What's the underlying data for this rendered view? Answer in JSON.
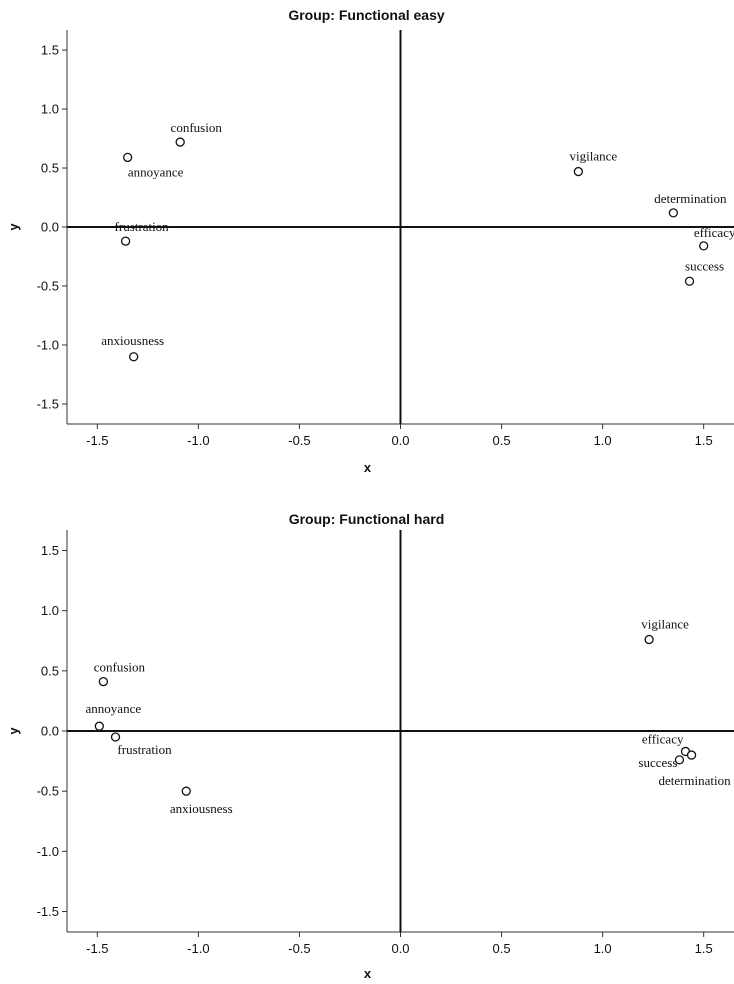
{
  "chart_data": [
    {
      "type": "scatter",
      "title": "Group: Functional easy",
      "xlabel": "x",
      "ylabel": "y",
      "xlim": [
        -1.65,
        1.65
      ],
      "ylim": [
        -1.67,
        1.67
      ],
      "xticks": [
        -1.5,
        -1.0,
        -0.5,
        0.0,
        0.5,
        1.0,
        1.5
      ],
      "yticks": [
        1.5,
        1.0,
        0.5,
        0.0,
        -0.5,
        -1.0,
        -1.5
      ],
      "xtick_labels": [
        "-1.5",
        "-1.0",
        "-0.5",
        "0.0",
        "0.5",
        "1.0",
        "1.5"
      ],
      "ytick_labels": [
        "1.5",
        "1.0",
        "0.5",
        "0.0",
        "-0.5",
        "-1.0",
        "-1.5"
      ],
      "reference_lines": {
        "x": 0,
        "y": 0
      },
      "grid": false,
      "points": [
        {
          "label": "confusion",
          "x": -1.09,
          "y": 0.72
        },
        {
          "label": "annoyance",
          "x": -1.35,
          "y": 0.59
        },
        {
          "label": "frustration",
          "x": -1.36,
          "y": -0.12
        },
        {
          "label": "anxiousness",
          "x": -1.32,
          "y": -1.1
        },
        {
          "label": "vigilance",
          "x": 0.88,
          "y": 0.47
        },
        {
          "label": "determination",
          "x": 1.35,
          "y": 0.12
        },
        {
          "label": "efficacy",
          "x": 1.5,
          "y": -0.16
        },
        {
          "label": "success",
          "x": 1.43,
          "y": -0.46
        }
      ]
    },
    {
      "type": "scatter",
      "title": "Group: Functional hard",
      "xlabel": "x",
      "ylabel": "y",
      "xlim": [
        -1.65,
        1.65
      ],
      "ylim": [
        -1.67,
        1.67
      ],
      "xticks": [
        -1.5,
        -1.0,
        -0.5,
        0.0,
        0.5,
        1.0,
        1.5
      ],
      "yticks": [
        1.5,
        1.0,
        0.5,
        0.0,
        -0.5,
        -1.0,
        -1.5
      ],
      "xtick_labels": [
        "-1.5",
        "-1.0",
        "-0.5",
        "0.0",
        "0.5",
        "1.0",
        "1.5"
      ],
      "ytick_labels": [
        "1.5",
        "1.0",
        "0.5",
        "0.0",
        "-0.5",
        "-1.0",
        "-1.5"
      ],
      "reference_lines": {
        "x": 0,
        "y": 0
      },
      "grid": false,
      "points": [
        {
          "label": "confusion",
          "x": -1.47,
          "y": 0.41
        },
        {
          "label": "annoyance",
          "x": -1.49,
          "y": 0.04
        },
        {
          "label": "frustration",
          "x": -1.41,
          "y": -0.05
        },
        {
          "label": "anxiousness",
          "x": -1.06,
          "y": -0.5
        },
        {
          "label": "vigilance",
          "x": 1.23,
          "y": 0.76
        },
        {
          "label": "efficacy",
          "x": 1.41,
          "y": -0.17
        },
        {
          "label": "success",
          "x": 1.38,
          "y": -0.24
        },
        {
          "label": "determination",
          "x": 1.44,
          "y": -0.2
        }
      ]
    }
  ]
}
